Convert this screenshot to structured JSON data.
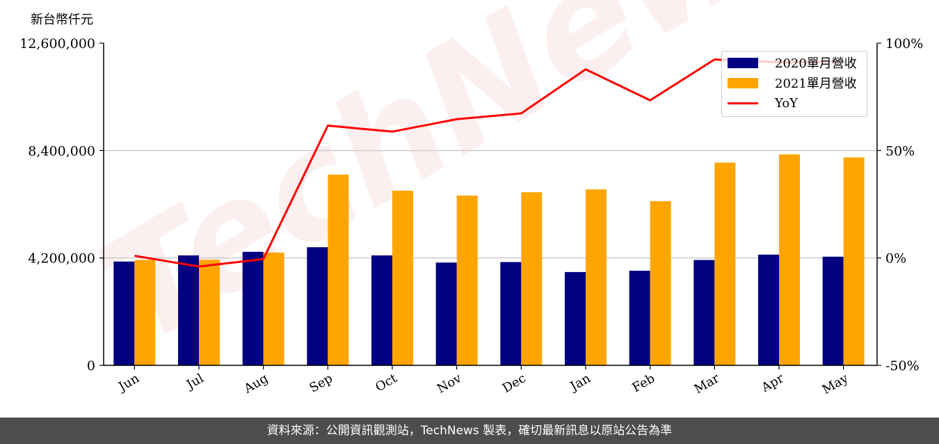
{
  "chart_data": {
    "type": "bar",
    "ylabel": "新台幣仟元",
    "categories": [
      "Jun",
      "Jul",
      "Aug",
      "Sep",
      "Oct",
      "Nov",
      "Dec",
      "Jan",
      "Feb",
      "Mar",
      "Apr",
      "May"
    ],
    "series": [
      {
        "name": "2020單月營收",
        "type": "bar",
        "color": "#000080",
        "axis": "left",
        "values": [
          4060000,
          4300000,
          4440000,
          4620000,
          4300000,
          4020000,
          4040000,
          3650000,
          3700000,
          4120000,
          4330000,
          4250000
        ]
      },
      {
        "name": "2021單月營收",
        "type": "bar",
        "color": "#ffa500",
        "axis": "left",
        "values": [
          4120000,
          4130000,
          4410000,
          7460000,
          6830000,
          6640000,
          6770000,
          6880000,
          6420000,
          7930000,
          8250000,
          8130000
        ]
      },
      {
        "name": "YoY",
        "type": "line",
        "color": "#ff0000",
        "axis": "right",
        "values": [
          0.01,
          -0.04,
          -0.005,
          0.616,
          0.588,
          0.646,
          0.673,
          0.878,
          0.734,
          0.924,
          0.911,
          0.915
        ]
      }
    ],
    "ylim": [
      0,
      12600000
    ],
    "y2lim": [
      -0.5,
      1.0
    ],
    "yticks": [
      "0",
      "4,200,000",
      "8,400,000",
      "12,600,000"
    ],
    "y2ticks": [
      "-50%",
      "0%",
      "50%",
      "100%"
    ],
    "grid": "horizontal",
    "legend_position": "top-right"
  },
  "watermark": "TechNews",
  "footer": "資料來源：公開資訊觀測站，TechNews 製表，確切最新訊息以原站公告為準"
}
